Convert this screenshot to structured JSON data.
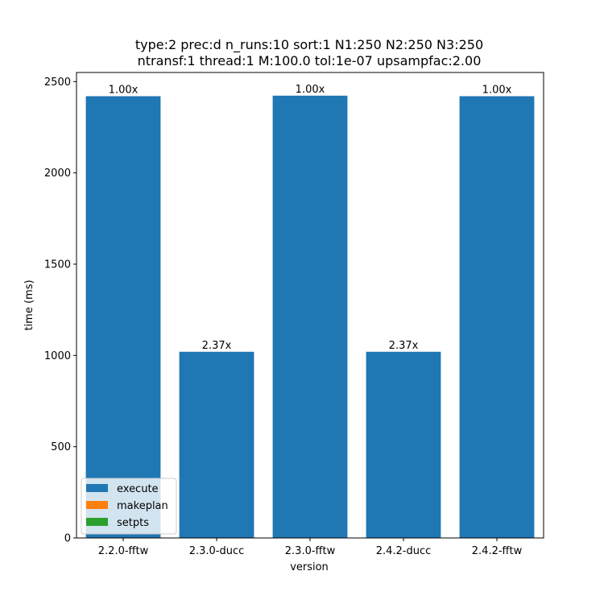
{
  "chart_data": {
    "type": "bar",
    "title_lines": [
      "type:2 prec:d n_runs:10 sort:1 N1:250 N2:250 N3:250",
      "ntransf:1 thread:1 M:100.0 tol:1e-07 upsampfac:2.00"
    ],
    "xlabel": "version",
    "ylabel": "time (ms)",
    "categories": [
      "2.2.0-fftw",
      "2.3.0-ducc",
      "2.3.0-fftw",
      "2.4.2-ducc",
      "2.4.2-fftw"
    ],
    "ylim": [
      0,
      2550
    ],
    "yticks": [
      0,
      500,
      1000,
      1500,
      2000,
      2500
    ],
    "stacked": true,
    "series": [
      {
        "name": "execute",
        "color": "#1f77b4",
        "values": [
          2420,
          1020,
          2423,
          1020,
          2420
        ]
      },
      {
        "name": "makeplan",
        "color": "#ff7f0e",
        "values": [
          0,
          0,
          0,
          0,
          0
        ]
      },
      {
        "name": "setpts",
        "color": "#2ca02c",
        "values": [
          0,
          0,
          0,
          0,
          0
        ]
      }
    ],
    "bar_labels": [
      "1.00x",
      "2.37x",
      "1.00x",
      "2.37x",
      "1.00x"
    ],
    "legend_position": "lower-left",
    "grid": false
  }
}
